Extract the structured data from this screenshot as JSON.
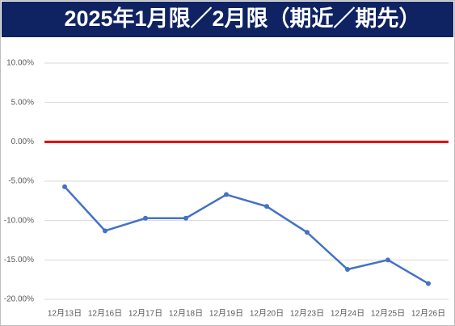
{
  "chart_data": {
    "type": "line",
    "title": "2025年1月限／2月限（期近／期先）",
    "categories": [
      "12月13日",
      "12月16日",
      "12月17日",
      "12月18日",
      "12月19日",
      "12月20日",
      "12月23日",
      "12月24日",
      "12月25日",
      "12月26日"
    ],
    "series": [
      {
        "color": "#4472c4",
        "values": [
          -5.7,
          -11.3,
          -9.7,
          -9.7,
          -6.7,
          -8.2,
          -11.5,
          -16.2,
          -15.0,
          -18.0
        ]
      }
    ],
    "ylim": [
      -20,
      10
    ],
    "yticks": [
      {
        "value": -20,
        "label": "-20.00%"
      },
      {
        "value": -15,
        "label": "-15.00%"
      },
      {
        "value": -10,
        "label": "-10.00%"
      },
      {
        "value": -5,
        "label": "-5.00%"
      },
      {
        "value": 0,
        "label": "0.00%"
      },
      {
        "value": 5,
        "label": "5.00%"
      },
      {
        "value": 10,
        "label": "10.00%"
      }
    ],
    "grid": true,
    "zero_line_color": "#e00000"
  }
}
